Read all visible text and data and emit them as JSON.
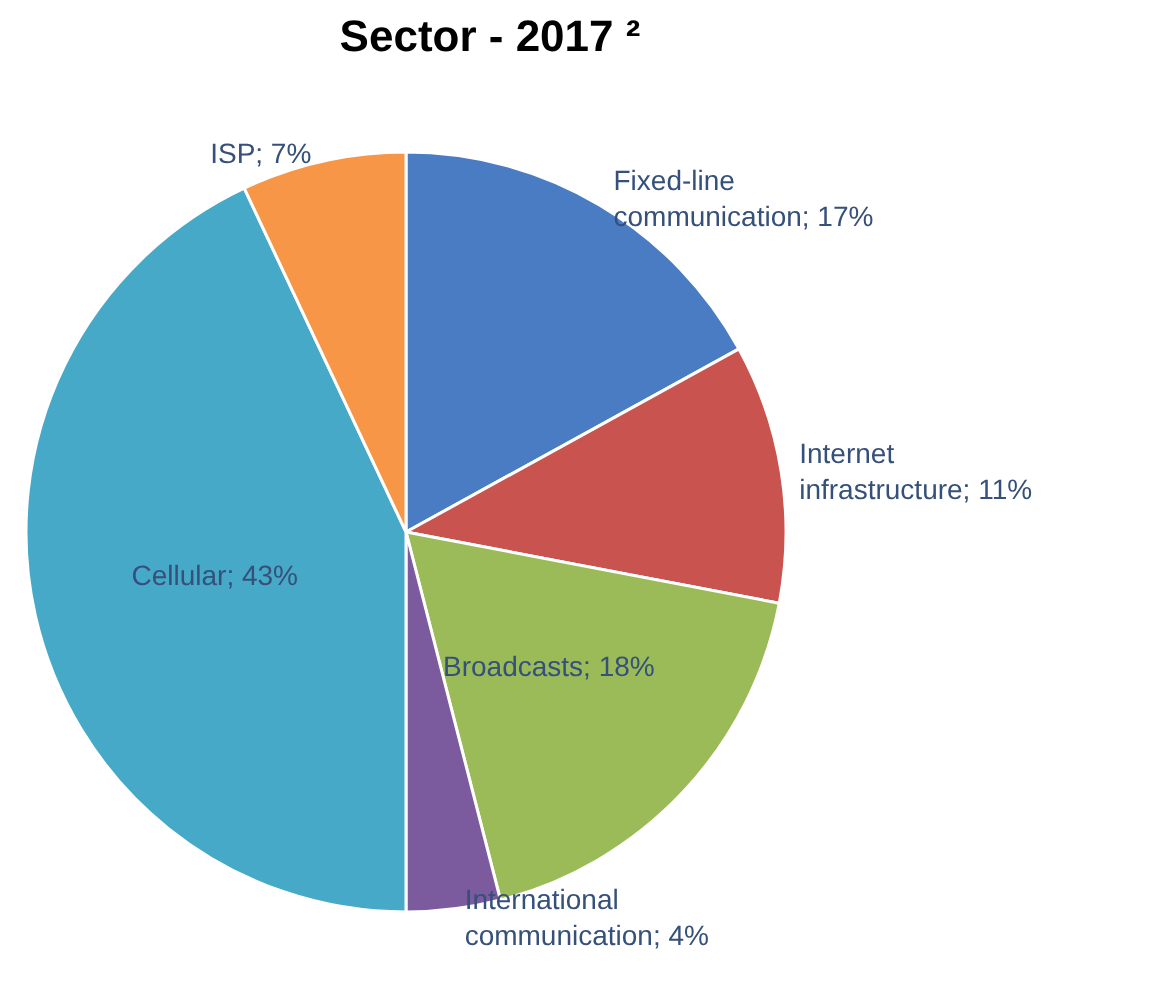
{
  "chart_data": {
    "type": "pie",
    "title": "Sector - 2017 ²",
    "categories": [
      "Fixed-line communication",
      "Internet infrastructure",
      "Broadcasts",
      "International communication",
      "Cellular",
      "ISP"
    ],
    "values": [
      17,
      11,
      18,
      4,
      43,
      7
    ],
    "value_labels": [
      "17%",
      "11%",
      "18%",
      "4%",
      "43%",
      "7%"
    ],
    "colors": [
      "#4a7cc4",
      "#c9534f",
      "#9bbb59",
      "#7b5a9e",
      "#46a9c8",
      "#f79646"
    ],
    "legend": false
  }
}
